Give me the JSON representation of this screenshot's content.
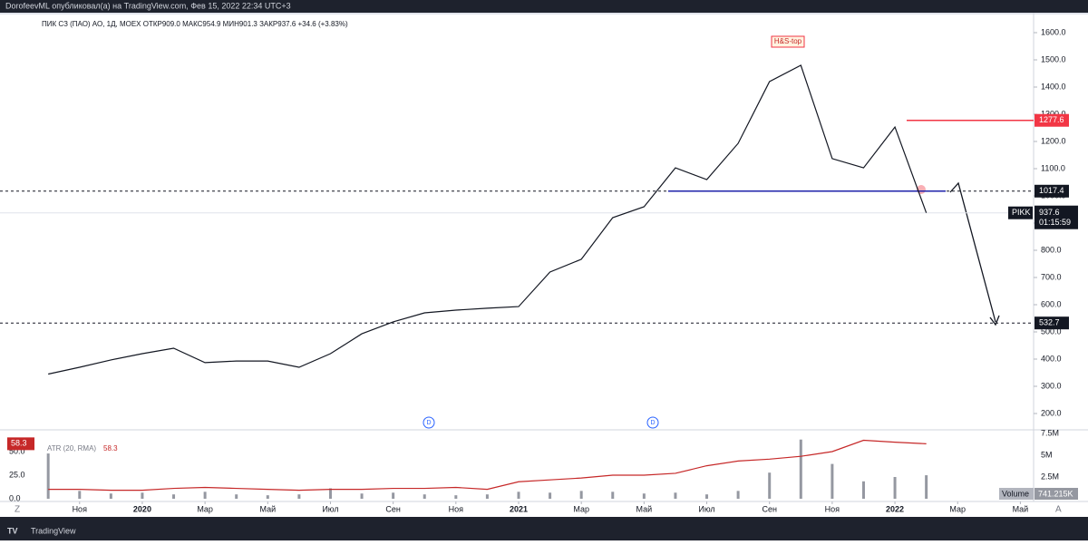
{
  "header": {
    "text": "DorofeevML опубликовал(а) на TradingView.com, Фев 15, 2022 22:34 UTC+3"
  },
  "footer": {
    "brand": "TradingView",
    "left_button": "Z",
    "right_button": "A"
  },
  "chart_data": [
    {
      "type": "line",
      "legend": "ПИК СЗ (ПАО) АО, 1Д, MOEX  ОТКР909.0  МАКС954.9  МИН901.3  ЗАКР937.6  +34.6 (+3.83%)",
      "x": [
        "2019-10",
        "2019-11",
        "2019-12",
        "2020-01",
        "2020-02",
        "2020-03",
        "2020-04",
        "2020-05",
        "2020-06",
        "2020-07",
        "2020-08",
        "2020-09",
        "2020-10",
        "2020-11",
        "2020-12",
        "2021-01",
        "2021-02",
        "2021-03",
        "2021-04",
        "2021-05",
        "2021-06",
        "2021-07",
        "2021-08",
        "2021-09",
        "2021-10",
        "2021-11",
        "2021-12",
        "2022-01",
        "2022-02"
      ],
      "series": [
        {
          "name": "PIKK",
          "color": "#131722",
          "values": [
            345,
            370,
            397,
            420,
            440,
            387,
            393,
            393,
            370,
            420,
            493,
            537,
            570,
            580,
            587,
            593,
            720,
            767,
            920,
            960,
            1103,
            1060,
            1193,
            1420,
            1480,
            1137,
            1103,
            1253,
            937.6
          ]
        }
      ],
      "last_price": 937.6,
      "countdown": "01:15:59",
      "levels": [
        {
          "value": 1277.6,
          "color": "#f23645",
          "style": "solid"
        },
        {
          "value": 1017.4,
          "color": "#131722",
          "style": "dashed"
        },
        {
          "value": 532.7,
          "color": "#131722",
          "style": "dashed"
        }
      ],
      "annotation": "H&S-top",
      "events": [
        "D",
        "D"
      ],
      "xlim": [
        "2019-08",
        "2022-06"
      ],
      "xticks": [
        {
          "value": "2019-11",
          "label": "Ноя"
        },
        {
          "value": "2020-01",
          "label": "2020"
        },
        {
          "value": "2020-03",
          "label": "Мар"
        },
        {
          "value": "2020-05",
          "label": "Май"
        },
        {
          "value": "2020-07",
          "label": "Июл"
        },
        {
          "value": "2020-09",
          "label": "Сен"
        },
        {
          "value": "2020-11",
          "label": "Ноя"
        },
        {
          "value": "2021-01",
          "label": "2021"
        },
        {
          "value": "2021-03",
          "label": "Мар"
        },
        {
          "value": "2021-05",
          "label": "Май"
        },
        {
          "value": "2021-07",
          "label": "Июл"
        },
        {
          "value": "2021-09",
          "label": "Сен"
        },
        {
          "value": "2021-11",
          "label": "Ноя"
        },
        {
          "value": "2022-01",
          "label": "2022"
        },
        {
          "value": "2022-03",
          "label": "Мар"
        },
        {
          "value": "2022-05",
          "label": "Май"
        }
      ],
      "ylim": [
        150,
        1650
      ],
      "yticks": [
        {
          "value": 200,
          "label": "200.0"
        },
        {
          "value": 300,
          "label": "300.0"
        },
        {
          "value": 400,
          "label": "400.0"
        },
        {
          "value": 500,
          "label": "500.0"
        },
        {
          "value": 600,
          "label": "600.0"
        },
        {
          "value": 700,
          "label": "700.0"
        },
        {
          "value": 800,
          "label": "800.0"
        },
        {
          "value": 900,
          "label": "900.0"
        },
        {
          "value": 1000,
          "label": "1000.0"
        },
        {
          "value": 1100,
          "label": "1100.0"
        },
        {
          "value": 1200,
          "label": "1200.0"
        },
        {
          "value": 1300,
          "label": "1300.0"
        },
        {
          "value": 1400,
          "label": "1400.0"
        },
        {
          "value": 1500,
          "label": "1500.0"
        },
        {
          "value": 1600,
          "label": "1600.0"
        }
      ]
    },
    {
      "type": "bar",
      "volume_label": "Volume",
      "volume_last": "741.215K",
      "x": [
        "2019-10",
        "2019-11",
        "2019-12",
        "2020-01",
        "2020-02",
        "2020-03",
        "2020-04",
        "2020-05",
        "2020-06",
        "2020-07",
        "2020-08",
        "2020-09",
        "2020-10",
        "2020-11",
        "2020-12",
        "2021-01",
        "2021-02",
        "2021-03",
        "2021-04",
        "2021-05",
        "2021-06",
        "2021-07",
        "2021-08",
        "2021-09",
        "2021-10",
        "2021-11",
        "2021-12",
        "2022-01",
        "2022-02"
      ],
      "series": [
        {
          "name": "Volume",
          "color": "#9598a1",
          "values": [
            5200000,
            900000,
            600000,
            700000,
            500000,
            800000,
            500000,
            400000,
            500000,
            1200000,
            600000,
            700000,
            500000,
            400000,
            500000,
            800000,
            700000,
            900000,
            800000,
            600000,
            700000,
            500000,
            900000,
            3000000,
            6800000,
            4000000,
            2000000,
            2500000,
            2700000
          ]
        },
        {
          "name": "ATR (20, RMA)",
          "color": "#c62828",
          "axis": "y2",
          "value_label": "58.3",
          "values": [
            10,
            10,
            9,
            9,
            11,
            12,
            11,
            10,
            9,
            10,
            10,
            11,
            11,
            12,
            10,
            18,
            20,
            22,
            25,
            25,
            27,
            35,
            40,
            42,
            45,
            50,
            62,
            60,
            58.3
          ]
        }
      ],
      "ylim": [
        0,
        8000000
      ],
      "yticks": [
        {
          "value": 2500000,
          "label": "2.5M"
        },
        {
          "value": 5000000,
          "label": "5M"
        },
        {
          "value": 7500000,
          "label": "7.5M"
        }
      ],
      "y2lim": [
        0,
        80
      ],
      "y2ticks": [
        {
          "value": 0,
          "label": "0.0"
        },
        {
          "value": 25,
          "label": "25.0"
        },
        {
          "value": 50,
          "label": "50.0"
        }
      ]
    }
  ]
}
